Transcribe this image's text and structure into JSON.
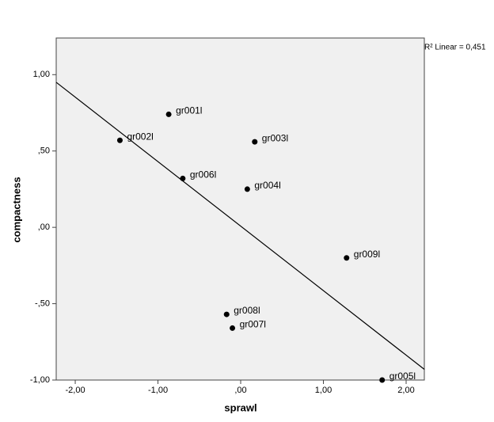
{
  "chart_data": {
    "type": "scatter",
    "x_label": "sprawl",
    "y_label": "compactness",
    "annotation": "R² Linear = 0,451",
    "point_labels": [
      "gr001l",
      "gr002l",
      "gr003l",
      "gr006l",
      "gr004l",
      "gr009l",
      "gr008l",
      "gr007l",
      "gr005l"
    ],
    "x": [
      -0.87,
      -1.46,
      0.17,
      -0.7,
      0.08,
      1.28,
      -0.17,
      -0.1,
      1.71
    ],
    "values": [
      0.74,
      0.57,
      0.56,
      0.32,
      0.25,
      -0.2,
      -0.57,
      -0.66,
      -1.0
    ],
    "color": "#000000",
    "fit_line": {
      "x": [
        -2.23,
        2.22
      ],
      "y": [
        0.95,
        -0.93
      ]
    },
    "xlim": [
      -2.23,
      2.22
    ],
    "ylim": [
      -1.0,
      1.24
    ],
    "xticks": [
      {
        "value": -2,
        "label": "-2,00"
      },
      {
        "value": -1,
        "label": "-1,00"
      },
      {
        "value": 0,
        "label": ",00"
      },
      {
        "value": 1,
        "label": "1,00"
      },
      {
        "value": 2,
        "label": "2,00"
      }
    ],
    "yticks": [
      {
        "value": -1,
        "label": "-1,00"
      },
      {
        "value": -0.5,
        "label": "-,50"
      },
      {
        "value": 0,
        "label": ",00"
      },
      {
        "value": 0.5,
        "label": ",50"
      },
      {
        "value": 1,
        "label": "1,00"
      }
    ]
  }
}
